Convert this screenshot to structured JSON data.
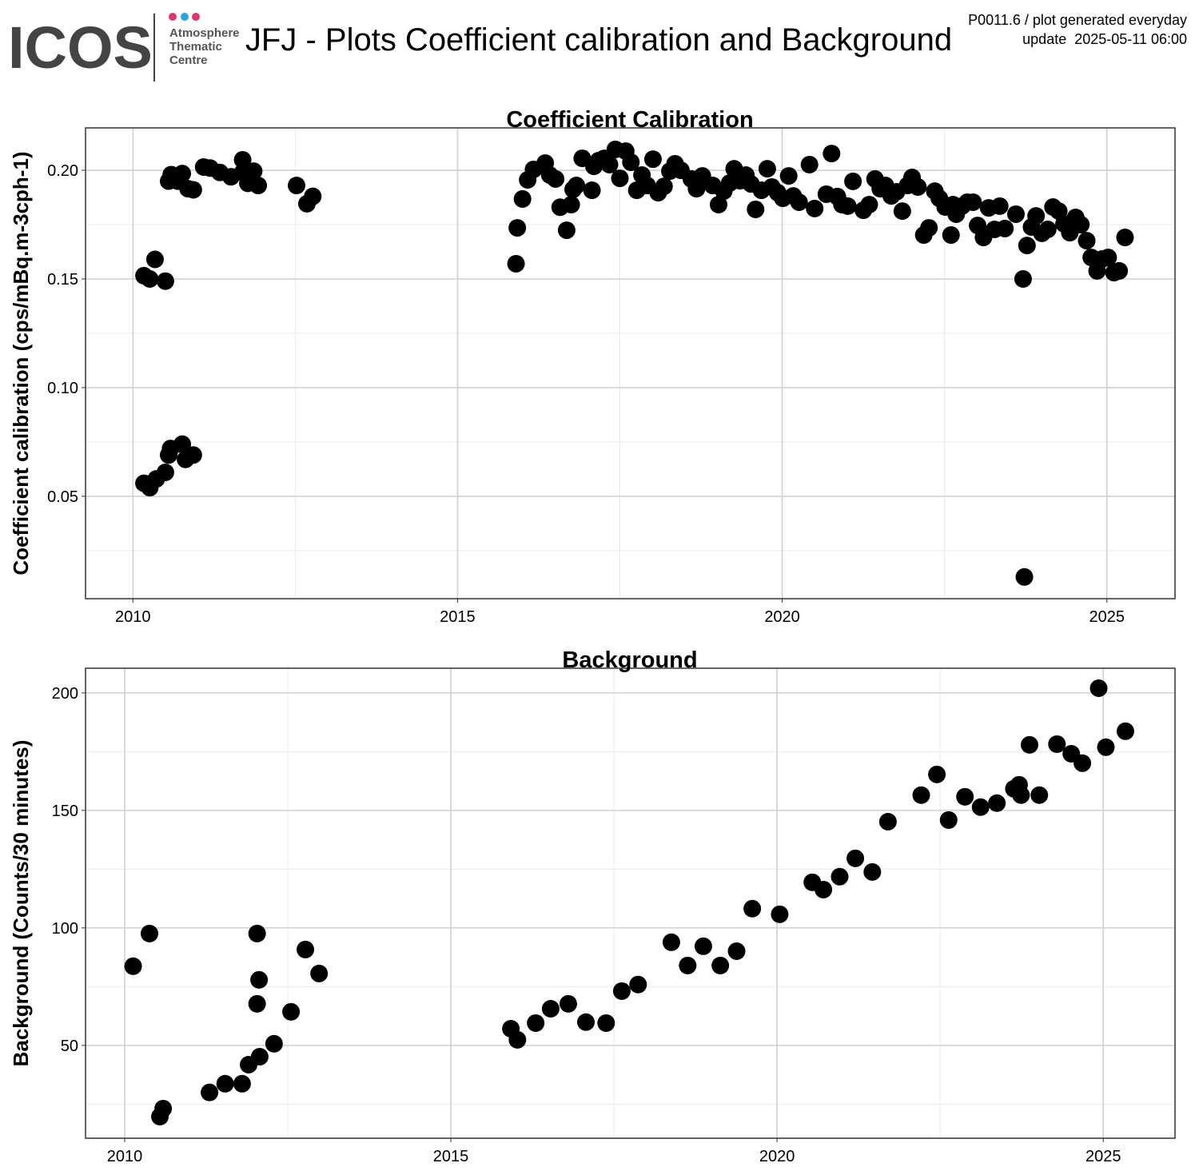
{
  "header": {
    "logo": "ICOS",
    "logo_sub": [
      "Atmosphere",
      "Thematic",
      "Centre"
    ],
    "title": "JFJ - Plots Coefficient calibration and Background",
    "note": [
      "P0011.6 / plot generated everyday",
      "update  2025-05-11 06:00"
    ]
  },
  "chart_data": [
    {
      "type": "scatter",
      "title": "Coefficient Calibration",
      "y_label": "Coefficient calibration (cps/mBq.m-3cph-1)",
      "color": "#000000",
      "grid": true,
      "xlim": [
        2009.27,
        2026.05
      ],
      "ylim": [
        0.0029,
        0.2195
      ],
      "xticks": [
        2010,
        2015,
        2020,
        2025
      ],
      "xminorticks": [
        2012.5,
        2017.5,
        2022.5
      ],
      "yticks": [
        {
          "value": 0.05,
          "label": "0.05"
        },
        {
          "value": 0.1,
          "label": "0.10"
        },
        {
          "value": 0.15,
          "label": "0.15"
        },
        {
          "value": 0.2,
          "label": "0.20"
        }
      ],
      "yminorticks": [
        0.025,
        0.075,
        0.125,
        0.175
      ],
      "x": [
        2010.17,
        2010.26,
        2010.34,
        2010.5,
        2010.17,
        2010.26,
        2010.36,
        2010.5,
        2010.55,
        2010.58,
        2010.76,
        2010.81,
        2010.93,
        2010.55,
        2010.59,
        2010.69,
        2010.76,
        2010.85,
        2010.93,
        2011.09,
        2011.19,
        2011.34,
        2011.51,
        2011.69,
        2011.69,
        2011.77,
        2011.86,
        2011.93,
        2012.52,
        2012.68,
        2012.77,
        2015.9,
        2015.92,
        2016.0,
        2016.08,
        2016.17,
        2016.35,
        2016.42,
        2016.51,
        2016.58,
        2016.68,
        2016.75,
        2016.78,
        2016.83,
        2016.92,
        2017.07,
        2017.1,
        2017.17,
        2017.26,
        2017.34,
        2017.43,
        2017.5,
        2017.59,
        2017.67,
        2017.76,
        2017.84,
        2017.92,
        2018.01,
        2018.09,
        2018.18,
        2018.27,
        2018.35,
        2018.44,
        2018.6,
        2018.68,
        2018.77,
        2018.93,
        2019.02,
        2019.1,
        2019.19,
        2019.26,
        2019.35,
        2019.44,
        2019.52,
        2019.59,
        2019.68,
        2019.77,
        2019.84,
        2019.93,
        2020.01,
        2020.1,
        2020.17,
        2020.26,
        2020.42,
        2020.5,
        2020.68,
        2020.76,
        2020.85,
        2020.92,
        2021.01,
        2021.09,
        2021.25,
        2021.34,
        2021.43,
        2021.51,
        2021.59,
        2021.68,
        2021.76,
        2021.85,
        2021.93,
        2022.0,
        2022.09,
        2022.18,
        2022.26,
        2022.35,
        2022.42,
        2022.51,
        2022.6,
        2022.63,
        2022.68,
        2022.77,
        2022.85,
        2022.94,
        2023.01,
        2023.1,
        2023.18,
        2023.27,
        2023.35,
        2023.43,
        2023.6,
        2023.71,
        2023.73,
        2023.77,
        2023.84,
        2023.91,
        2024.0,
        2024.09,
        2024.17,
        2024.26,
        2024.34,
        2024.43,
        2024.52,
        2024.6,
        2024.69,
        2024.76,
        2024.85,
        2024.93,
        2025.02,
        2025.11,
        2025.19,
        2025.28
      ],
      "values": [
        0.1515,
        0.15,
        0.159,
        0.149,
        0.056,
        0.054,
        0.058,
        0.061,
        0.069,
        0.072,
        0.074,
        0.067,
        0.069,
        0.195,
        0.198,
        0.195,
        0.1985,
        0.1915,
        0.191,
        0.2015,
        0.201,
        0.199,
        0.197,
        0.2048,
        0.199,
        0.194,
        0.1996,
        0.193,
        0.193,
        0.1846,
        0.188,
        0.157,
        0.1735,
        0.1868,
        0.1956,
        0.2004,
        0.2033,
        0.1978,
        0.196,
        0.183,
        0.1724,
        0.1842,
        0.1912,
        0.193,
        0.2055,
        0.1908,
        0.2018,
        0.2044,
        0.2055,
        0.2026,
        0.2096,
        0.1963,
        0.2088,
        0.2037,
        0.1908,
        0.1978,
        0.193,
        0.2051,
        0.1897,
        0.1926,
        0.1996,
        0.203,
        0.2,
        0.196,
        0.1915,
        0.1974,
        0.193,
        0.1842,
        0.1904,
        0.1941,
        0.2007,
        0.1952,
        0.1978,
        0.1937,
        0.182,
        0.1908,
        0.2007,
        0.1923,
        0.1897,
        0.1871,
        0.1974,
        0.1882,
        0.1853,
        0.2026,
        0.1824,
        0.189,
        0.2077,
        0.1879,
        0.1842,
        0.1835,
        0.1949,
        0.1816,
        0.1842,
        0.196,
        0.1915,
        0.193,
        0.1882,
        0.1901,
        0.1812,
        0.193,
        0.1967,
        0.1923,
        0.1702,
        0.1735,
        0.1904,
        0.1871,
        0.1831,
        0.1702,
        0.1842,
        0.1798,
        0.1835,
        0.1853,
        0.1853,
        0.1746,
        0.1691,
        0.1827,
        0.1728,
        0.1835,
        0.1732,
        0.1798,
        0.15,
        0.0129,
        0.1654,
        0.1739,
        0.179,
        0.171,
        0.1728,
        0.1831,
        0.1812,
        0.1754,
        0.1713,
        0.1783,
        0.175,
        0.1676,
        0.1599,
        0.1537,
        0.1592,
        0.1599,
        0.1529,
        0.1537,
        0.1691
      ]
    },
    {
      "type": "scatter",
      "title": "Background",
      "y_label": "Background (Counts/30 minutes)",
      "color": "#000000",
      "grid": true,
      "xlim": [
        2009.4,
        2026.1
      ],
      "ylim": [
        10.5,
        210.5
      ],
      "xticks": [
        2010,
        2015,
        2020,
        2025
      ],
      "xminorticks": [
        2012.5,
        2017.5,
        2022.5
      ],
      "yticks": [
        50,
        100,
        150,
        200
      ],
      "yminorticks": [
        25,
        75,
        125,
        175
      ],
      "x": [
        2010.13,
        2010.38,
        2010.54,
        2010.59,
        2011.3,
        2011.54,
        2011.8,
        2011.9,
        2012.03,
        2012.03,
        2012.06,
        2012.07,
        2012.29,
        2012.55,
        2012.77,
        2012.98,
        2015.92,
        2016.02,
        2016.3,
        2016.53,
        2016.8,
        2017.07,
        2017.38,
        2017.62,
        2017.87,
        2018.38,
        2018.63,
        2018.87,
        2019.13,
        2019.38,
        2019.62,
        2020.04,
        2020.54,
        2020.71,
        2020.96,
        2021.2,
        2021.46,
        2021.7,
        2022.21,
        2022.45,
        2022.63,
        2022.88,
        2023.12,
        2023.37,
        2023.63,
        2023.71,
        2023.74,
        2023.87,
        2024.02,
        2024.29,
        2024.51,
        2024.68,
        2024.93,
        2025.04,
        2025.34
      ],
      "values": [
        83.7,
        97.6,
        19.7,
        23.1,
        30.0,
        33.7,
        33.7,
        41.8,
        97.6,
        67.7,
        77.9,
        45.2,
        50.7,
        64.3,
        90.8,
        80.6,
        57.1,
        52.4,
        59.5,
        65.6,
        67.7,
        59.9,
        59.5,
        73.1,
        75.9,
        93.9,
        84.0,
        92.2,
        84.0,
        90.1,
        108.2,
        105.8,
        119.4,
        116.3,
        121.8,
        129.6,
        123.8,
        145.2,
        156.5,
        165.3,
        145.9,
        155.8,
        151.4,
        153.1,
        159.2,
        160.9,
        156.5,
        177.9,
        156.5,
        178.2,
        174.1,
        170.1,
        202.0,
        176.9,
        183.7
      ]
    }
  ]
}
